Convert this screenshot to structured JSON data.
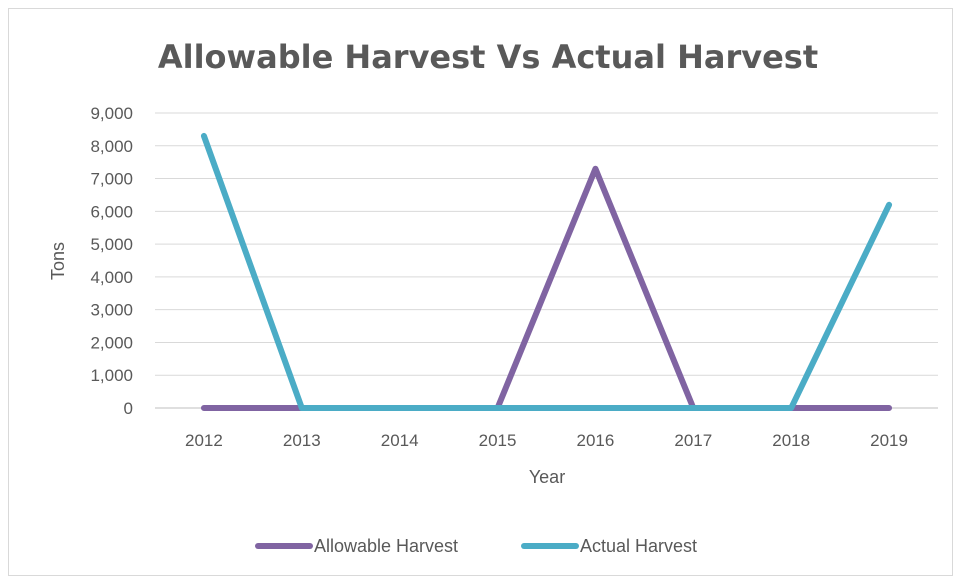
{
  "chart_data": {
    "type": "line",
    "title": "Allowable Harvest Vs Actual Harvest",
    "xlabel": "Year",
    "ylabel": "Tons",
    "categories": [
      "2012",
      "2013",
      "2014",
      "2015",
      "2016",
      "2017",
      "2018",
      "2019"
    ],
    "yticks": [
      "0",
      "1,000",
      "2,000",
      "3,000",
      "4,000",
      "5,000",
      "6,000",
      "7,000",
      "8,000",
      "9,000"
    ],
    "ylim": [
      0,
      9000
    ],
    "grid": true,
    "legend": "bottom",
    "series": [
      {
        "name": "Allowable Harvest",
        "color": "#8064a2",
        "values": [
          0,
          0,
          0,
          0,
          7300,
          0,
          0,
          0
        ]
      },
      {
        "name": "Actual Harvest",
        "color": "#4bacc6",
        "values": [
          8300,
          0,
          0,
          0,
          0,
          0,
          0,
          6200
        ]
      }
    ]
  }
}
